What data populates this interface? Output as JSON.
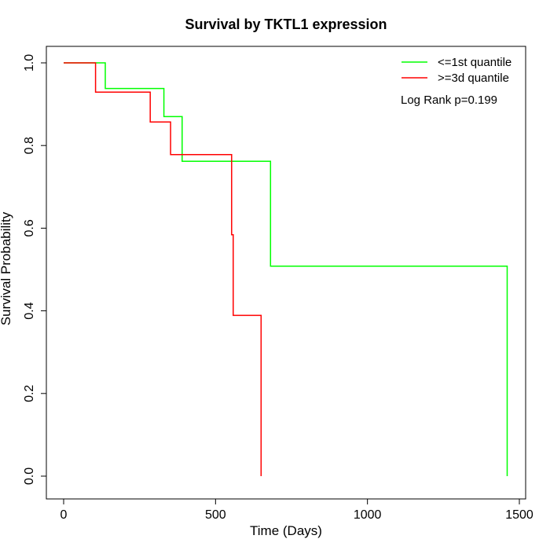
{
  "chart_data": {
    "type": "line",
    "title": "Survival by TKTL1 expression",
    "xlabel": "Time (Days)",
    "ylabel": "Survival Probability",
    "xlim": [
      0,
      1500
    ],
    "ylim": [
      0,
      1.0
    ],
    "x_ticks": [
      "0",
      "500",
      "1000",
      "1500"
    ],
    "y_ticks": [
      "0.0",
      "0.2",
      "0.4",
      "0.6",
      "0.8",
      "1.0"
    ],
    "legend_position": "top-right",
    "annotation": "Log Rank p=0.199",
    "series": [
      {
        "name": "<=1st quantile",
        "color": "#00ff00",
        "points": [
          [
            0,
            1.0
          ],
          [
            137,
            1.0
          ],
          [
            137,
            0.938
          ],
          [
            330,
            0.938
          ],
          [
            330,
            0.87
          ],
          [
            390,
            0.87
          ],
          [
            390,
            0.762
          ],
          [
            681,
            0.762
          ],
          [
            681,
            0.508
          ],
          [
            1460,
            0.508
          ],
          [
            1460,
            0.0
          ]
        ]
      },
      {
        "name": ">=3d quantile",
        "color": "#ff0000",
        "points": [
          [
            0,
            1.0
          ],
          [
            105,
            1.0
          ],
          [
            105,
            0.929
          ],
          [
            285,
            0.929
          ],
          [
            285,
            0.857
          ],
          [
            352,
            0.857
          ],
          [
            352,
            0.778
          ],
          [
            553,
            0.778
          ],
          [
            553,
            0.584
          ],
          [
            558,
            0.584
          ],
          [
            558,
            0.389
          ],
          [
            650,
            0.389
          ],
          [
            650,
            0.0
          ]
        ]
      }
    ]
  }
}
